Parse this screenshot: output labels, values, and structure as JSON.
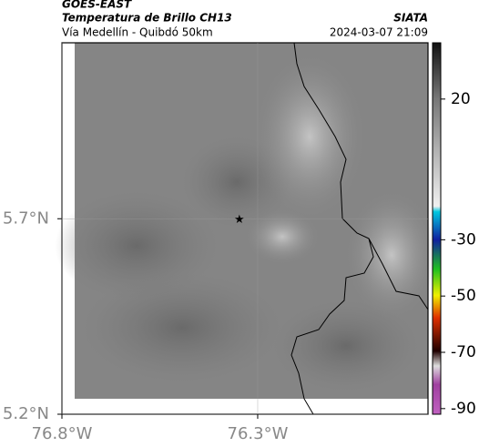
{
  "header": {
    "title": "GOES-EAST",
    "subtitle": "Temperatura de Brillo CH13",
    "source": "SIATA",
    "region": "Vía Medellín - Quibdó 50km",
    "datetime": "2024-03-07 21:09"
  },
  "map": {
    "lonlim": [
      -76.8,
      -75.865
    ],
    "latlim": [
      5.2,
      6.15
    ],
    "lat_ticks": [
      {
        "value": 5.2,
        "label": "5.2°N"
      },
      {
        "value": 5.7,
        "label": "5.7°N"
      }
    ],
    "lon_ticks": [
      {
        "value": -76.8,
        "label": "76.8°W"
      },
      {
        "value": -76.3,
        "label": "76.3°W"
      }
    ],
    "marker": {
      "lon": -76.347,
      "lat": 5.7
    }
  },
  "colorbar": {
    "lim": [
      -92,
      40
    ],
    "ticks": [
      20,
      -30,
      -50,
      -70,
      -90
    ]
  }
}
